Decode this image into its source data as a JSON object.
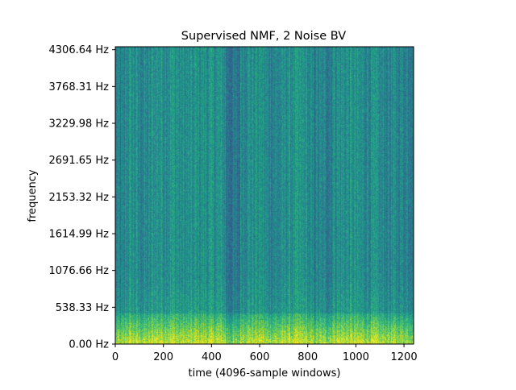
{
  "chart_data": {
    "type": "heatmap",
    "title": "Supervised NMF, 2 Noise BV",
    "xlabel": "time (4096-sample windows)",
    "ylabel": "frequency",
    "xlim": [
      0,
      1240
    ],
    "ylim": [
      0,
      4350
    ],
    "x_ticks": [
      0,
      200,
      400,
      600,
      800,
      1000,
      1200
    ],
    "x_tick_labels": [
      "0",
      "200",
      "400",
      "600",
      "800",
      "1000",
      "1200"
    ],
    "y_ticks": [
      0.0,
      538.33,
      1076.66,
      1614.99,
      2153.32,
      2691.65,
      3229.98,
      3768.31,
      4306.64
    ],
    "y_tick_labels": [
      "0.00 Hz",
      "538.33 Hz",
      "1076.66 Hz",
      "1614.99 Hz",
      "2153.32 Hz",
      "2691.65 Hz",
      "3229.98 Hz",
      "3768.31 Hz",
      "4306.64 Hz"
    ],
    "colormap": "viridis",
    "grid": false,
    "intensity_profile": {
      "time_bands": [
        {
          "x": [
            0,
            40
          ],
          "level": 0.42
        },
        {
          "x": [
            40,
            90
          ],
          "level": 0.5
        },
        {
          "x": [
            90,
            150
          ],
          "level": 0.46
        },
        {
          "x": [
            150,
            260
          ],
          "level": 0.52
        },
        {
          "x": [
            260,
            330
          ],
          "level": 0.48
        },
        {
          "x": [
            330,
            460
          ],
          "level": 0.5
        },
        {
          "x": [
            460,
            520
          ],
          "level": 0.38
        },
        {
          "x": [
            520,
            620
          ],
          "level": 0.5
        },
        {
          "x": [
            620,
            700
          ],
          "level": 0.46
        },
        {
          "x": [
            700,
            800
          ],
          "level": 0.5
        },
        {
          "x": [
            800,
            900
          ],
          "level": 0.44
        },
        {
          "x": [
            900,
            1000
          ],
          "level": 0.5
        },
        {
          "x": [
            1000,
            1100
          ],
          "level": 0.48
        },
        {
          "x": [
            1100,
            1240
          ],
          "level": 0.46
        }
      ],
      "low_frequency_boost_hz": 450
    }
  }
}
